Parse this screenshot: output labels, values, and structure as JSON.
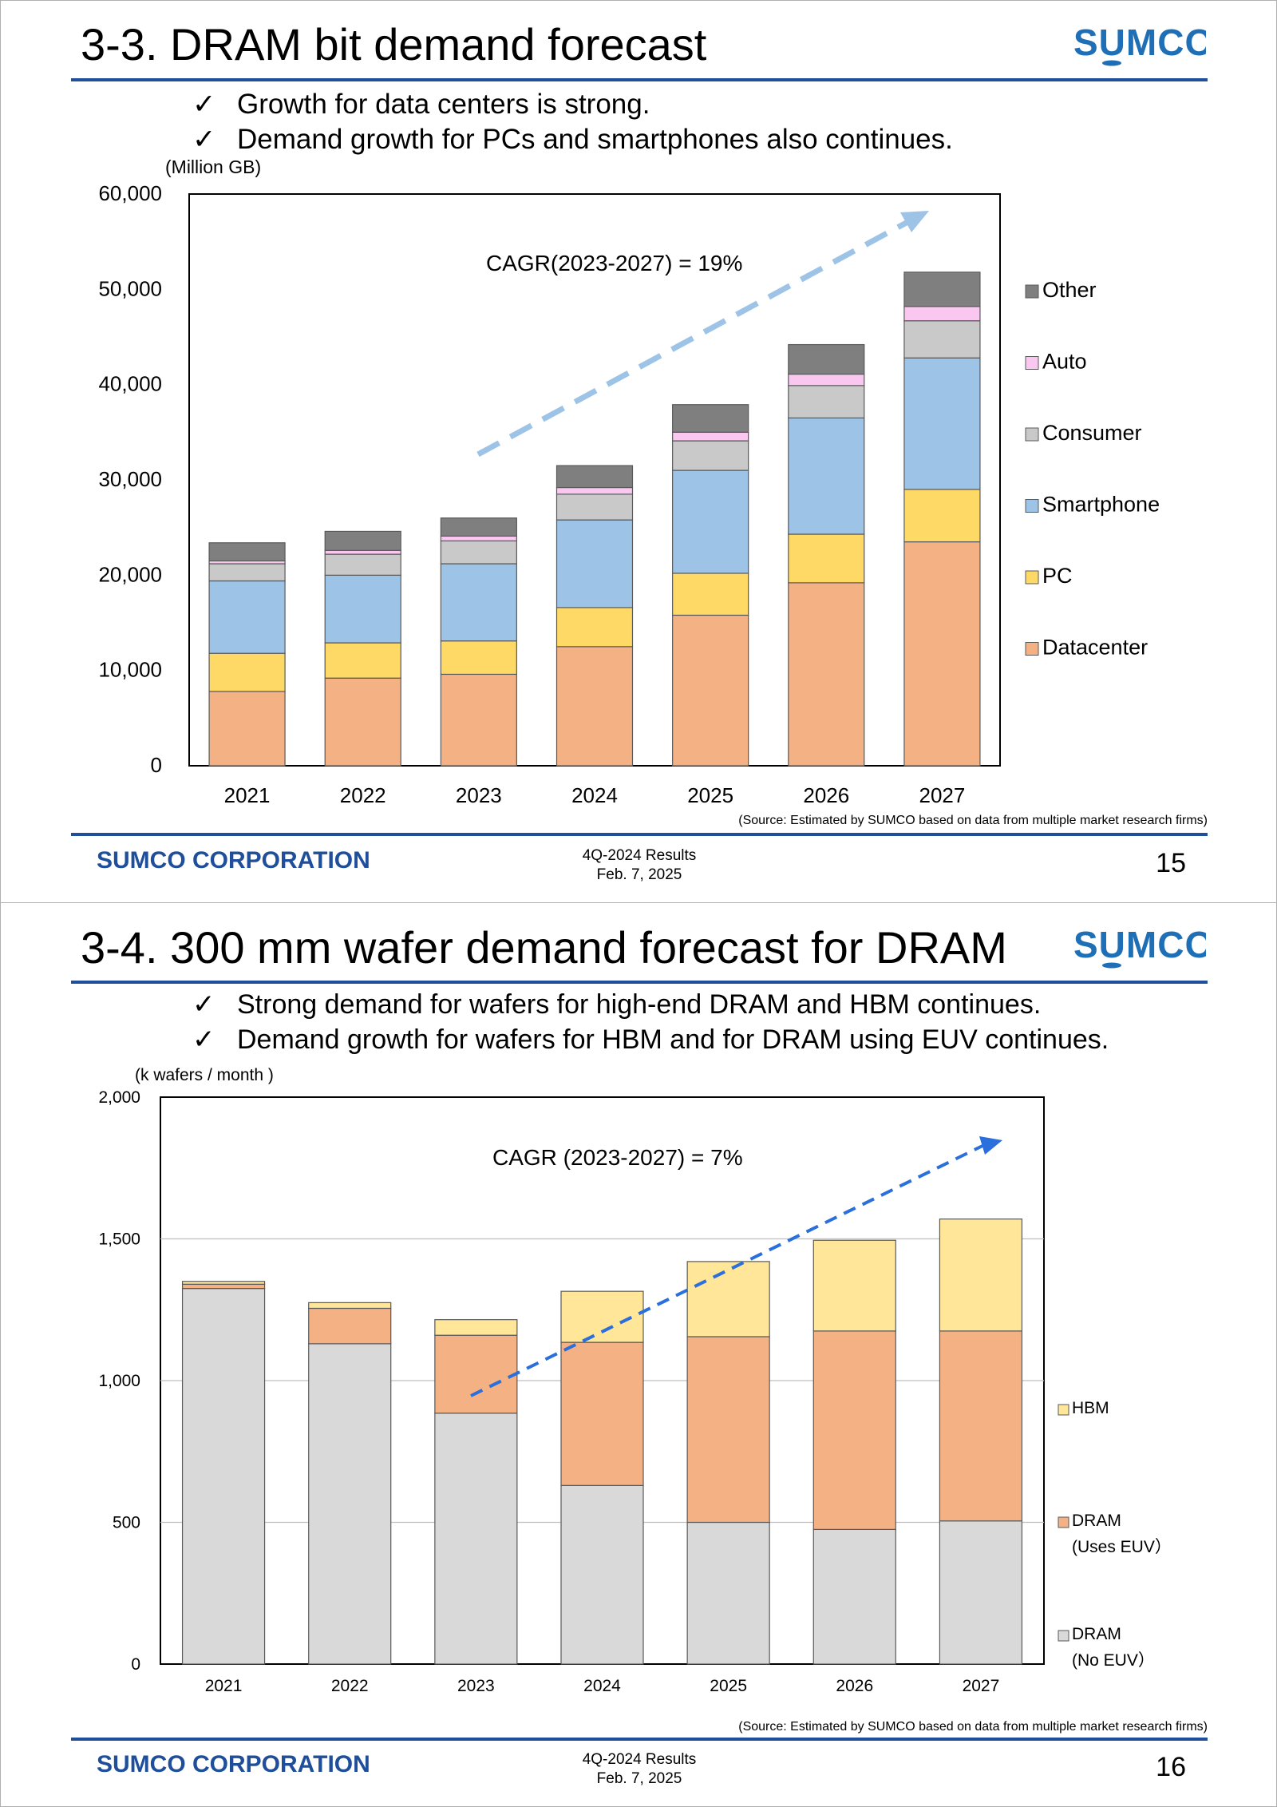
{
  "logo_text": "SUMCO",
  "colors": {
    "brand_blue": "#1f4e9a",
    "Datacenter": "#f4b183",
    "PC": "#ffd966",
    "Smartphone": "#9dc3e6",
    "Consumer": "#c9c9c9",
    "Auto": "#f9c7f0",
    "Other": "#7f7f7f",
    "HBM": "#ffe699",
    "DRAM_EUV": "#f4b183",
    "DRAM_NoEUV": "#d9d9d9"
  },
  "slides": [
    {
      "title": "3-3. DRAM bit demand forecast",
      "bullets": [
        "Growth for data centers is strong.",
        "Demand growth for PCs and smartphones also continues."
      ],
      "check": "✓",
      "source": "(Source: Estimated by SUMCO based on data from multiple market research firms)",
      "footer": {
        "company": "SUMCO CORPORATION",
        "results": "4Q-2024 Results",
        "date": "Feb. 7, 2025",
        "page": "15"
      }
    },
    {
      "title": "3-4. 300 mm wafer demand forecast for DRAM",
      "bullets": [
        "Strong demand for wafers for high-end DRAM and HBM continues.",
        "Demand growth for wafers for HBM and for DRAM using EUV continues."
      ],
      "check": "✓",
      "source": "(Source: Estimated by SUMCO based on data from multiple market research firms)",
      "footer": {
        "company": "SUMCO CORPORATION",
        "results": "4Q-2024 Results",
        "date": "Feb. 7, 2025",
        "page": "16"
      }
    }
  ],
  "chart_data": [
    {
      "type": "bar",
      "stacked": true,
      "title": "DRAM bit demand forecast",
      "ylabel": "(Million GB)",
      "xlabel": "",
      "ylim": [
        0,
        60000
      ],
      "yticks": [
        0,
        10000,
        20000,
        30000,
        40000,
        50000,
        60000
      ],
      "ytick_labels": [
        "0",
        "10,000",
        "20,000",
        "30,000",
        "40,000",
        "50,000",
        "60,000"
      ],
      "categories": [
        "2021",
        "2022",
        "2023",
        "2024",
        "2025",
        "2026",
        "2027"
      ],
      "series": [
        {
          "name": "Datacenter",
          "values": [
            7800,
            9200,
            9600,
            12500,
            15800,
            19200,
            23500
          ]
        },
        {
          "name": "PC",
          "values": [
            4000,
            3700,
            3500,
            4100,
            4400,
            5100,
            5500
          ]
        },
        {
          "name": "Smartphone",
          "values": [
            7600,
            7100,
            8100,
            9200,
            10800,
            12200,
            13800
          ]
        },
        {
          "name": "Consumer",
          "values": [
            1800,
            2200,
            2400,
            2700,
            3100,
            3400,
            3900
          ]
        },
        {
          "name": "Auto",
          "values": [
            300,
            400,
            500,
            700,
            900,
            1200,
            1500
          ]
        },
        {
          "name": "Other",
          "values": [
            1900,
            2000,
            1900,
            2300,
            2900,
            3100,
            3600
          ]
        }
      ],
      "legend_order": [
        "Other",
        "Auto",
        "Consumer",
        "Smartphone",
        "PC",
        "Datacenter"
      ],
      "legend_position": "right",
      "annotation": "CAGR(2023-2027) = 19%"
    },
    {
      "type": "bar",
      "stacked": true,
      "title": "300 mm wafer demand forecast for DRAM",
      "ylabel": "(k wafers / month )",
      "xlabel": "",
      "ylim": [
        0,
        2000
      ],
      "yticks": [
        0,
        500,
        1000,
        1500,
        2000
      ],
      "ytick_labels": [
        "0",
        "500",
        "1,000",
        "1,500",
        "2,000"
      ],
      "categories": [
        "2021",
        "2022",
        "2023",
        "2024",
        "2025",
        "2026",
        "2027"
      ],
      "series": [
        {
          "name": "DRAM (No EUV)",
          "values": [
            1325,
            1130,
            885,
            630,
            500,
            475,
            505
          ]
        },
        {
          "name": "DRAM (Uses EUV)",
          "values": [
            15,
            125,
            275,
            505,
            655,
            700,
            670
          ]
        },
        {
          "name": "HBM",
          "values": [
            10,
            20,
            55,
            180,
            265,
            320,
            395
          ]
        }
      ],
      "legend": [
        {
          "series": "HBM",
          "lines": [
            "HBM"
          ]
        },
        {
          "series": "DRAM (Uses EUV)",
          "lines": [
            "DRAM",
            "(Uses EUV）"
          ]
        },
        {
          "series": "DRAM (No EUV)",
          "lines": [
            "DRAM",
            "(No EUV）"
          ]
        }
      ],
      "legend_position": "right",
      "annotation": "CAGR (2023-2027) = 7%"
    }
  ]
}
